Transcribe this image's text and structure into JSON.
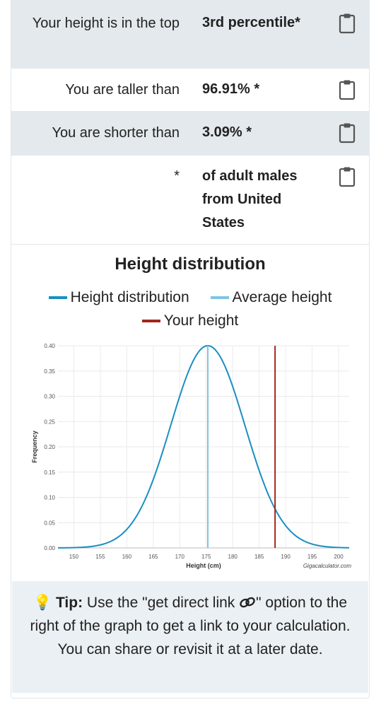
{
  "result_rows": [
    {
      "label": "Your height is in the top",
      "value": "3rd percentile*"
    },
    {
      "label": "You are taller than",
      "value": "96.91% *"
    },
    {
      "label": "You are shorter than",
      "value": "3.09% *"
    },
    {
      "label": "*",
      "value": "of adult males from United States"
    }
  ],
  "clipboard_icon": "clipboard-icon",
  "chart": {
    "legend": [
      {
        "label": "Height distribution",
        "color": "#1a8fc0"
      },
      {
        "label": "Average height",
        "color": "#7fc4e4"
      },
      {
        "label": "Your height",
        "color": "#a3261d"
      }
    ]
  },
  "chart_data": {
    "type": "line",
    "title": "Height distribution",
    "xlabel": "Height (cm)",
    "ylabel": "Frequency",
    "xlim": [
      147,
      202
    ],
    "ylim": [
      0,
      0.4
    ],
    "xticks": [
      150,
      155,
      160,
      165,
      170,
      175,
      180,
      185,
      190,
      195,
      200
    ],
    "yticks": [
      "0.00",
      "0.05",
      "0.10",
      "0.15",
      "0.20",
      "0.25",
      "0.30",
      "0.35",
      "0.40"
    ],
    "series": [
      {
        "name": "Height distribution",
        "distribution": "normal",
        "mean": 175.3,
        "sd": 7.0,
        "peak": 0.4,
        "x_range": [
          147,
          202
        ],
        "color": "#1a8fc0"
      }
    ],
    "vlines": [
      {
        "name": "Average height",
        "x": 175.3,
        "color": "#7fc4e4"
      },
      {
        "name": "Your height",
        "x": 188,
        "color": "#a3261d"
      }
    ],
    "grid": true,
    "legend_position": "top",
    "credit": "Gigacalculator.com"
  },
  "tip": {
    "icon": "lightbulb-icon",
    "link_icon": "link-icon",
    "heading": "Tip:",
    "text_before": " Use the \"get direct link ",
    "text_after": "\" option to the right of the graph to get a link to your calculation. You can share or revisit it at a later date."
  }
}
